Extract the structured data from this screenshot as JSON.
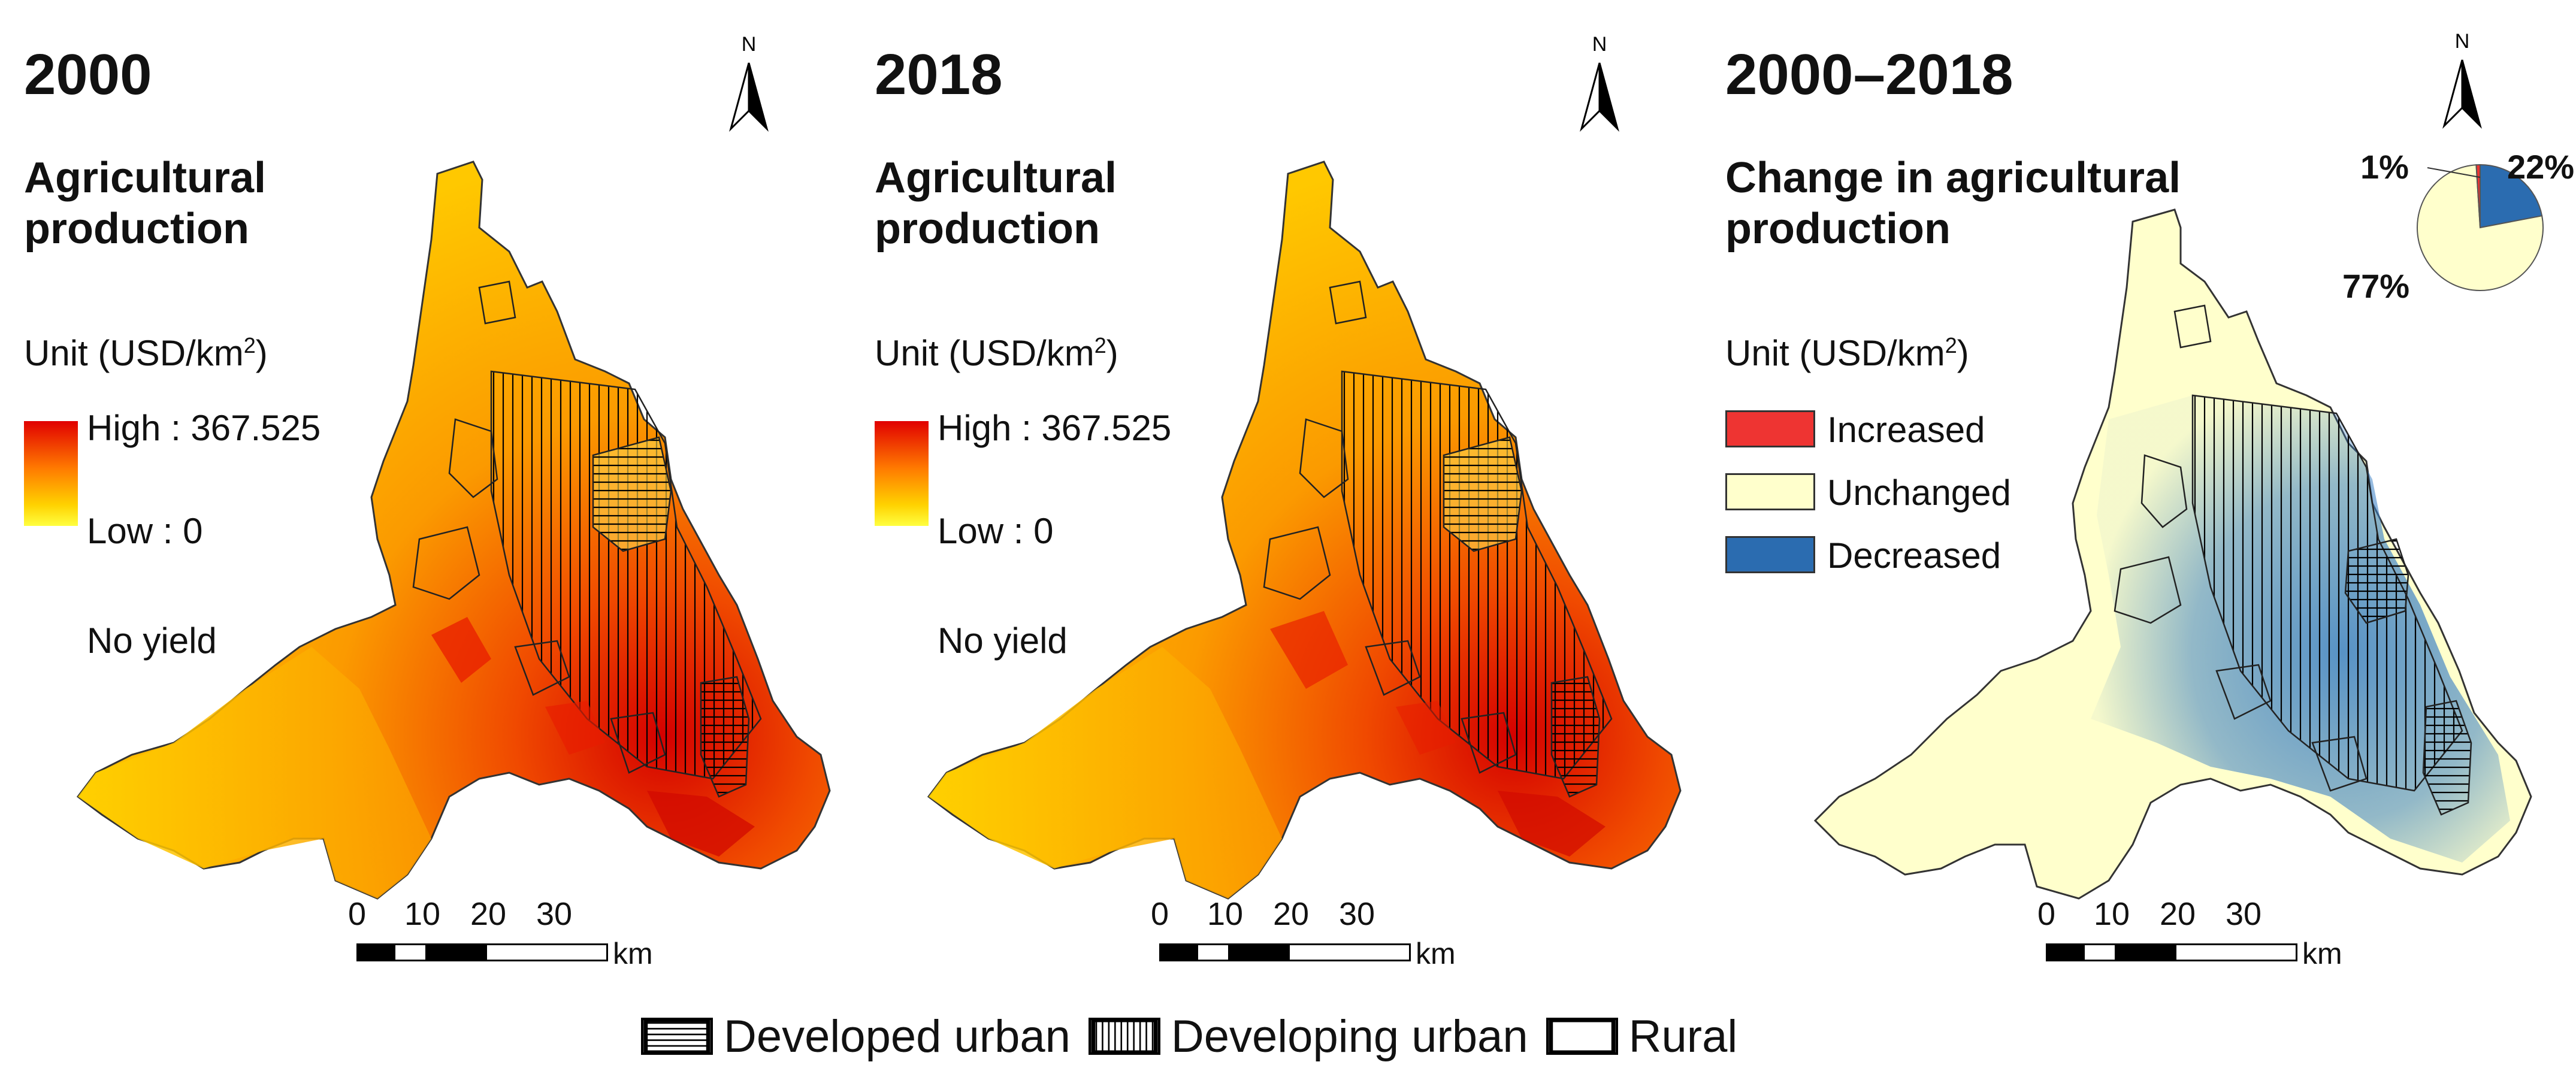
{
  "panels": [
    {
      "year": "2000",
      "title_line1": "Agricultural",
      "title_line2": "production",
      "unit_text": "Unit (USD/km",
      "unit_sup": "2",
      "unit_close": ")",
      "high_label": "High : 367.525",
      "low_label": "Low : 0",
      "no_yield_label": "No yield"
    },
    {
      "year": "2018",
      "title_line1": "Agricultural",
      "title_line2": "production",
      "unit_text": "Unit (USD/km",
      "unit_sup": "2",
      "unit_close": ")",
      "high_label": "High : 367.525",
      "low_label": "Low : 0",
      "no_yield_label": "No yield"
    },
    {
      "year": "2000–2018",
      "title_line1": "Change in agricultural",
      "title_line2": "production",
      "unit_text": "Unit (USD/km",
      "unit_sup": "2",
      "unit_close": ")",
      "legend": [
        {
          "label": "Increased",
          "color": "#ee3432"
        },
        {
          "label": "Unchanged",
          "color": "#ffffcc"
        },
        {
          "label": "Decreased",
          "color": "#2b6cb0"
        }
      ],
      "pie": {
        "increased_pct": "1%",
        "decreased_pct": "22%",
        "unchanged_pct": "77%",
        "increased_value": 1,
        "decreased_value": 22,
        "unchanged_value": 77
      }
    }
  ],
  "north_label": "N",
  "scale_bar": {
    "ticks": [
      "0",
      "10",
      "20",
      "30"
    ],
    "unit": "km"
  },
  "bottom_legend": [
    {
      "label": "Developed urban",
      "pattern": "horizontal-hatch"
    },
    {
      "label": "Developing urban",
      "pattern": "vertical-hatch"
    },
    {
      "label": "Rural",
      "pattern": "blank"
    }
  ],
  "colors": {
    "high": "#e10000",
    "mid": "#ff8c00",
    "low": "#ffff40",
    "unchanged": "#ffffcc",
    "decreased": "#2b6cb0",
    "increased": "#ee3432"
  }
}
